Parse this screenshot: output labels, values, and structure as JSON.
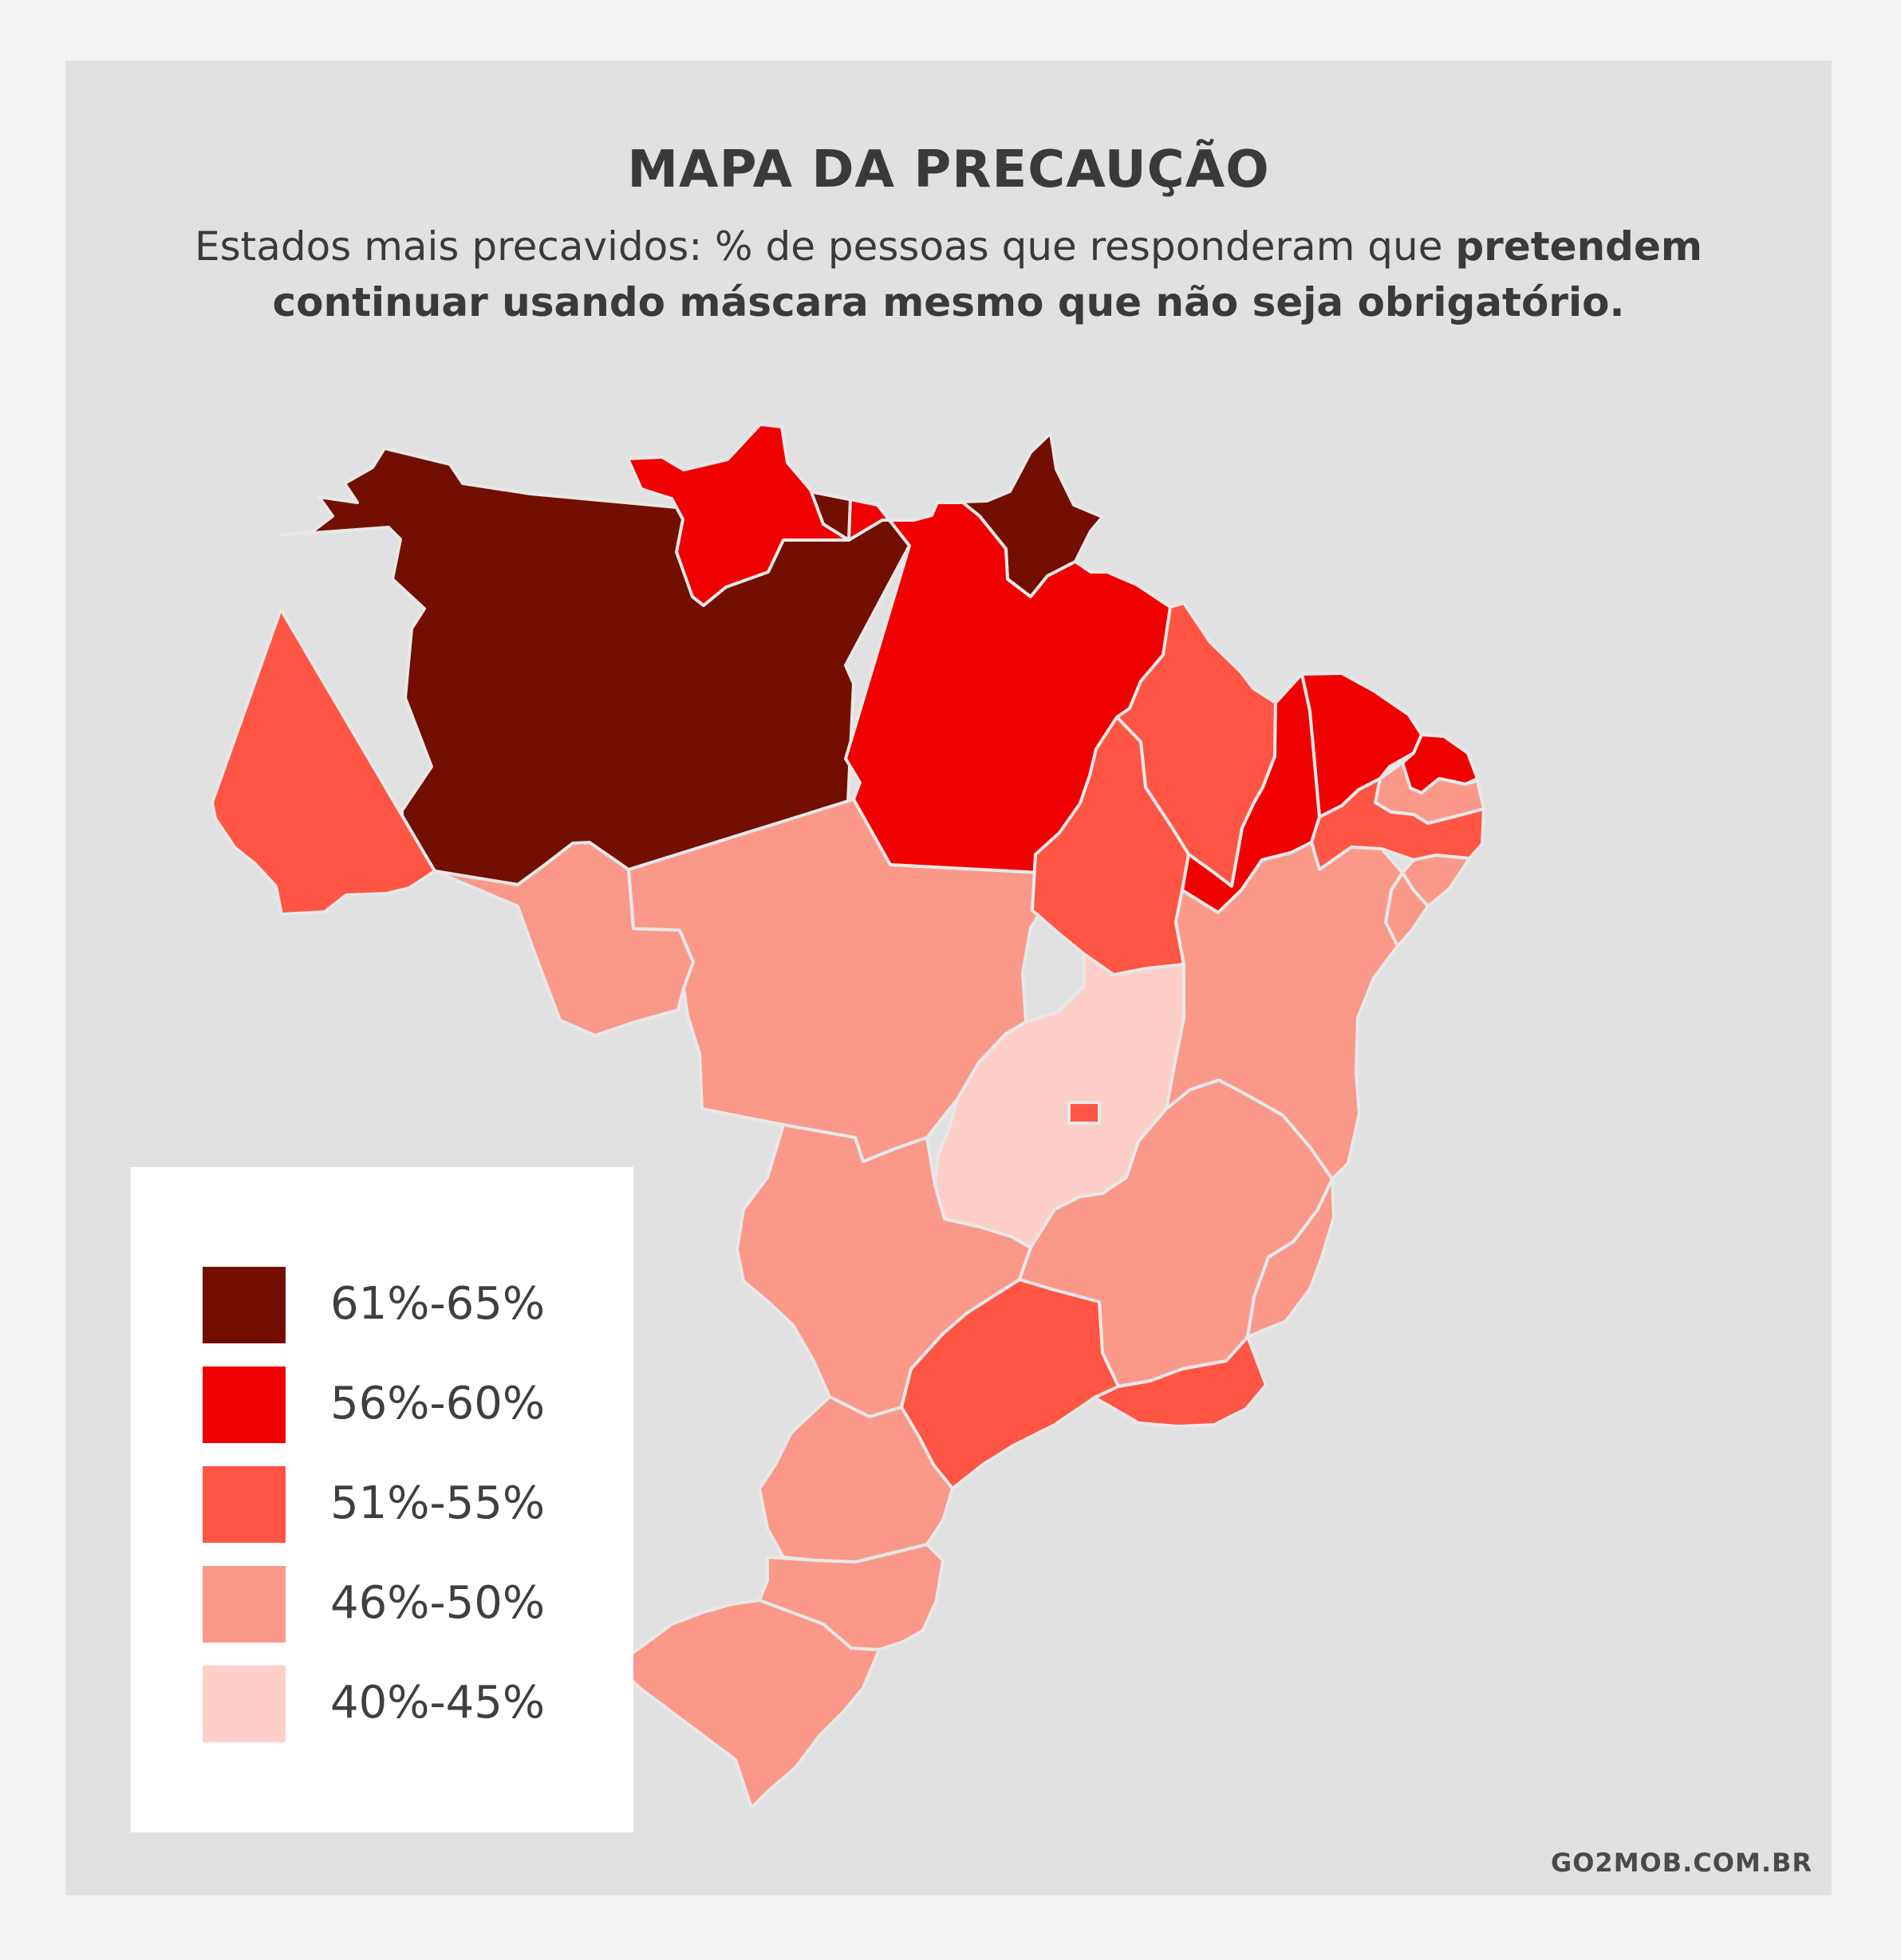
{
  "title": "MAPA DA PRECAUÇÃO",
  "subtitle_regular": "Estados mais precavidos: % de pessoas que responderam que ",
  "subtitle_bold": "pretendem continuar usando máscara mesmo que não seja obrigatório.",
  "legend": [
    {
      "label": "61%-65%",
      "color": "#720f00"
    },
    {
      "label": "56%-60%",
      "color": "#f00000"
    },
    {
      "label": "51%-55%",
      "color": "#ff5544"
    },
    {
      "label": "46%-50%",
      "color": "#fa998a"
    },
    {
      "label": "40%-45%",
      "color": "#fdcfc8"
    }
  ],
  "credit": "GO2MOB.COM.BR",
  "map_data": {
    "states": [
      {
        "id": "AM",
        "band": "61%-65%"
      },
      {
        "id": "AP",
        "band": "61%-65%"
      },
      {
        "id": "RR",
        "band": "56%-60%"
      },
      {
        "id": "PA",
        "band": "56%-60%"
      },
      {
        "id": "PI",
        "band": "56%-60%"
      },
      {
        "id": "CE",
        "band": "56%-60%"
      },
      {
        "id": "RN",
        "band": "56%-60%"
      },
      {
        "id": "AC",
        "band": "51%-55%"
      },
      {
        "id": "MA",
        "band": "51%-55%"
      },
      {
        "id": "TO",
        "band": "51%-55%"
      },
      {
        "id": "PE",
        "band": "51%-55%"
      },
      {
        "id": "SP",
        "band": "51%-55%"
      },
      {
        "id": "RJ",
        "band": "51%-55%"
      },
      {
        "id": "DF",
        "band": "51%-55%"
      },
      {
        "id": "RO",
        "band": "46%-50%"
      },
      {
        "id": "MT",
        "band": "46%-50%"
      },
      {
        "id": "MS",
        "band": "46%-50%"
      },
      {
        "id": "BA",
        "band": "46%-50%"
      },
      {
        "id": "MG",
        "band": "46%-50%"
      },
      {
        "id": "ES",
        "band": "46%-50%"
      },
      {
        "id": "PB",
        "band": "46%-50%"
      },
      {
        "id": "AL",
        "band": "46%-50%"
      },
      {
        "id": "SE",
        "band": "46%-50%"
      },
      {
        "id": "PR",
        "band": "46%-50%"
      },
      {
        "id": "SC",
        "band": "46%-50%"
      },
      {
        "id": "RS",
        "band": "46%-50%"
      },
      {
        "id": "GO",
        "band": "40%-45%"
      }
    ]
  }
}
